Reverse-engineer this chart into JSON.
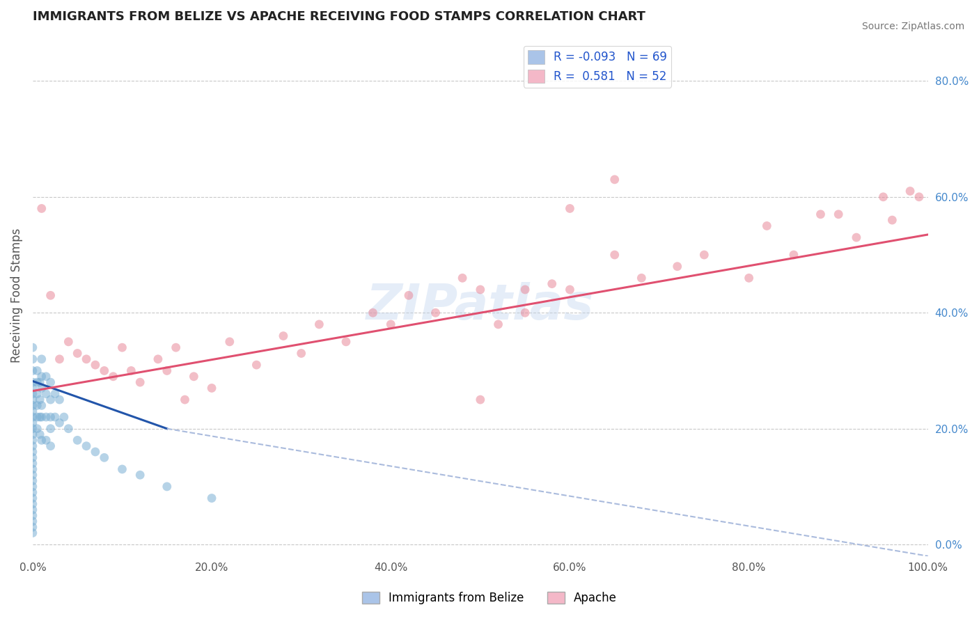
{
  "title": "IMMIGRANTS FROM BELIZE VS APACHE RECEIVING FOOD STAMPS CORRELATION CHART",
  "source": "Source: ZipAtlas.com",
  "ylabel": "Receiving Food Stamps",
  "watermark": "ZIPatlas",
  "legend_entries": [
    {
      "label": "R = -0.093   N = 69",
      "color": "#aac4e8"
    },
    {
      "label": "R =  0.581   N = 52",
      "color": "#f4b8c8"
    }
  ],
  "xlim": [
    0.0,
    1.0
  ],
  "ylim": [
    -0.02,
    0.88
  ],
  "xticks": [
    0.0,
    0.2,
    0.4,
    0.6,
    0.8,
    1.0
  ],
  "yticks_right": [
    0.0,
    0.2,
    0.4,
    0.6,
    0.8
  ],
  "xticklabels": [
    "0.0%",
    "20.0%",
    "40.0%",
    "60.0%",
    "80.0%",
    "100.0%"
  ],
  "yticklabels_right": [
    "0.0%",
    "20.0%",
    "40.0%",
    "60.0%",
    "80.0%"
  ],
  "background_color": "#ffffff",
  "grid_color": "#c8c8c8",
  "title_color": "#222222",
  "title_fontsize": 13,
  "blue_scatter": {
    "x": [
      0.0,
      0.0,
      0.0,
      0.0,
      0.0,
      0.0,
      0.0,
      0.0,
      0.0,
      0.0,
      0.0,
      0.0,
      0.0,
      0.0,
      0.0,
      0.0,
      0.0,
      0.0,
      0.0,
      0.0,
      0.0,
      0.0,
      0.0,
      0.0,
      0.0,
      0.0,
      0.0,
      0.0,
      0.0,
      0.0,
      0.005,
      0.005,
      0.005,
      0.005,
      0.005,
      0.005,
      0.008,
      0.008,
      0.008,
      0.008,
      0.01,
      0.01,
      0.01,
      0.01,
      0.01,
      0.01,
      0.015,
      0.015,
      0.015,
      0.015,
      0.02,
      0.02,
      0.02,
      0.02,
      0.02,
      0.025,
      0.025,
      0.03,
      0.03,
      0.035,
      0.04,
      0.05,
      0.06,
      0.07,
      0.08,
      0.1,
      0.12,
      0.15,
      0.2
    ],
    "y": [
      0.34,
      0.32,
      0.3,
      0.28,
      0.27,
      0.26,
      0.25,
      0.24,
      0.23,
      0.22,
      0.21,
      0.2,
      0.19,
      0.18,
      0.17,
      0.16,
      0.15,
      0.14,
      0.13,
      0.12,
      0.11,
      0.1,
      0.09,
      0.08,
      0.07,
      0.06,
      0.05,
      0.04,
      0.03,
      0.02,
      0.3,
      0.28,
      0.26,
      0.24,
      0.22,
      0.2,
      0.28,
      0.25,
      0.22,
      0.19,
      0.32,
      0.29,
      0.27,
      0.24,
      0.22,
      0.18,
      0.29,
      0.26,
      0.22,
      0.18,
      0.28,
      0.25,
      0.22,
      0.2,
      0.17,
      0.26,
      0.22,
      0.25,
      0.21,
      0.22,
      0.2,
      0.18,
      0.17,
      0.16,
      0.15,
      0.13,
      0.12,
      0.1,
      0.08
    ],
    "color": "#7bafd4",
    "alpha": 0.55,
    "size": 85
  },
  "pink_scatter": {
    "x": [
      0.01,
      0.02,
      0.03,
      0.04,
      0.05,
      0.06,
      0.07,
      0.08,
      0.09,
      0.1,
      0.11,
      0.12,
      0.14,
      0.15,
      0.16,
      0.17,
      0.18,
      0.2,
      0.22,
      0.25,
      0.28,
      0.3,
      0.32,
      0.35,
      0.38,
      0.4,
      0.42,
      0.45,
      0.48,
      0.5,
      0.52,
      0.55,
      0.58,
      0.6,
      0.65,
      0.68,
      0.72,
      0.75,
      0.8,
      0.82,
      0.85,
      0.88,
      0.9,
      0.92,
      0.95,
      0.96,
      0.98,
      0.99,
      0.5,
      0.55,
      0.6,
      0.65
    ],
    "y": [
      0.58,
      0.43,
      0.32,
      0.35,
      0.33,
      0.32,
      0.31,
      0.3,
      0.29,
      0.34,
      0.3,
      0.28,
      0.32,
      0.3,
      0.34,
      0.25,
      0.29,
      0.27,
      0.35,
      0.31,
      0.36,
      0.33,
      0.38,
      0.35,
      0.4,
      0.38,
      0.43,
      0.4,
      0.46,
      0.44,
      0.38,
      0.44,
      0.45,
      0.44,
      0.5,
      0.46,
      0.48,
      0.5,
      0.46,
      0.55,
      0.5,
      0.57,
      0.57,
      0.53,
      0.6,
      0.56,
      0.61,
      0.6,
      0.25,
      0.4,
      0.58,
      0.63
    ],
    "color": "#e8899a",
    "alpha": 0.55,
    "size": 85
  },
  "blue_trend_solid": {
    "x_start": 0.0,
    "x_end": 0.15,
    "y_start": 0.282,
    "y_end": 0.2,
    "color": "#2255aa",
    "linewidth": 2.2
  },
  "blue_trend_dash": {
    "x_start": 0.15,
    "x_end": 1.0,
    "y_start": 0.2,
    "y_end": -0.02,
    "color": "#aabbdd",
    "linewidth": 1.5,
    "linestyle": "--"
  },
  "pink_trend": {
    "x_start": 0.0,
    "x_end": 1.0,
    "y_start": 0.265,
    "y_end": 0.535,
    "color": "#e05070",
    "linewidth": 2.2
  }
}
